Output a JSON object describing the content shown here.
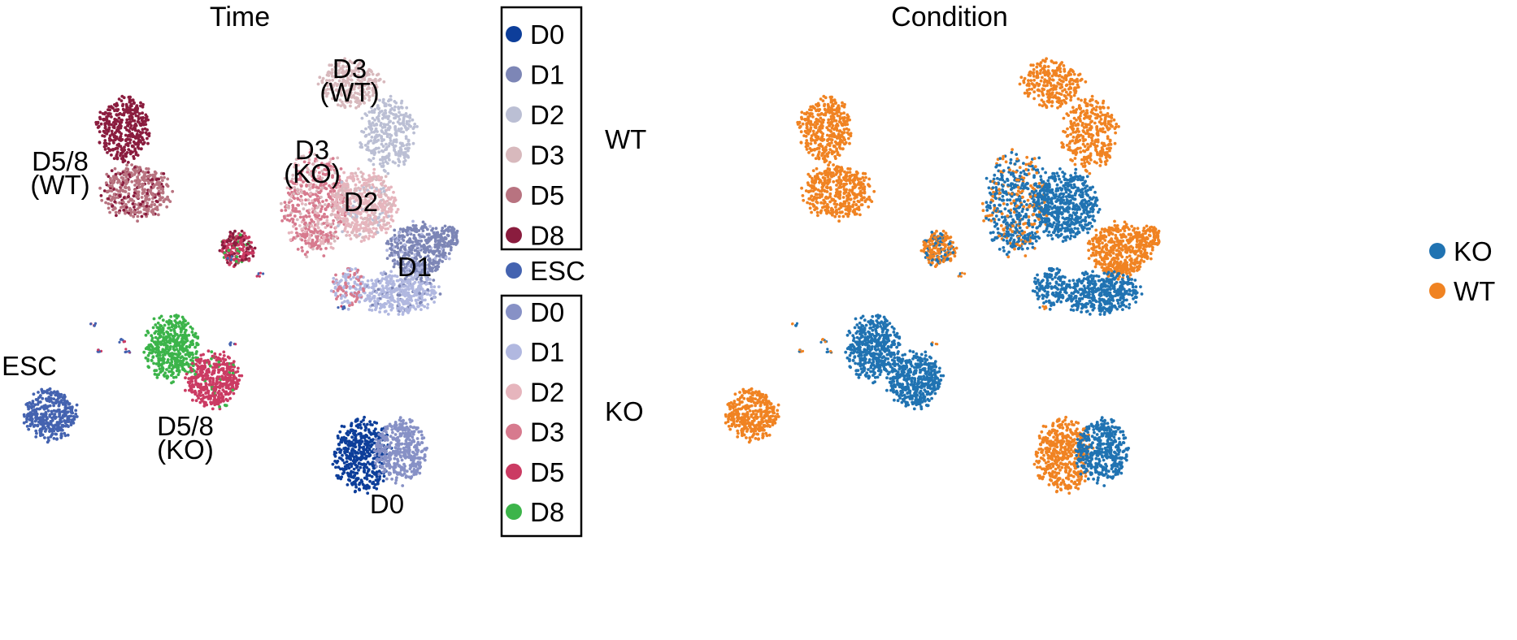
{
  "chart_data": [
    {
      "type": "scatter",
      "title": "Time",
      "xlabel": "",
      "ylabel": "",
      "axes": "none",
      "legend_groups": [
        {
          "name": "WT",
          "entries": [
            {
              "label": "D0",
              "color": "#0d3e9a"
            },
            {
              "label": "D1",
              "color": "#7d86b6"
            },
            {
              "label": "D2",
              "color": "#bbbfd4"
            },
            {
              "label": "D3",
              "color": "#d8b9bd"
            },
            {
              "label": "D5",
              "color": "#b87380"
            },
            {
              "label": "D8",
              "color": "#8a1c3e"
            }
          ]
        },
        {
          "name": "ESC",
          "entries": [
            {
              "label": "ESC",
              "color": "#4463b0"
            }
          ]
        },
        {
          "name": "KO",
          "entries": [
            {
              "label": "D0",
              "color": "#8791c6"
            },
            {
              "label": "D1",
              "color": "#b1b8e0"
            },
            {
              "label": "D2",
              "color": "#e6b5bd"
            },
            {
              "label": "D3",
              "color": "#d77a8e"
            },
            {
              "label": "D5",
              "color": "#cb3b63"
            },
            {
              "label": "D8",
              "color": "#3cb44a"
            }
          ]
        }
      ],
      "annotations": [
        {
          "lines": [
            "D3",
            "(WT)"
          ]
        },
        {
          "lines": [
            "D5/8",
            "(WT)"
          ]
        },
        {
          "lines": [
            "D3",
            "(KO)"
          ]
        },
        {
          "lines": [
            "D2"
          ]
        },
        {
          "lines": [
            "D1"
          ]
        },
        {
          "lines": [
            "ESC"
          ]
        },
        {
          "lines": [
            "D5/8",
            "(KO)"
          ]
        },
        {
          "lines": [
            "D0"
          ]
        }
      ]
    },
    {
      "type": "scatter",
      "title": "Condition",
      "xlabel": "",
      "ylabel": "",
      "axes": "none",
      "legend": [
        {
          "label": "KO",
          "color": "#2073b2"
        },
        {
          "label": "WT",
          "color": "#f08322"
        }
      ]
    }
  ]
}
